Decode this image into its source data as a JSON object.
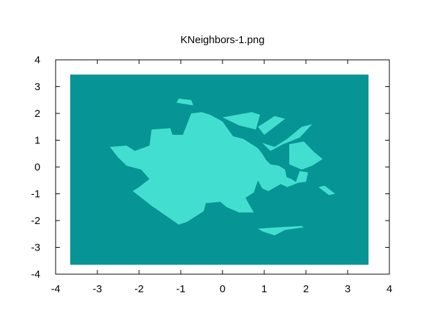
{
  "chart_data": {
    "type": "heatmap",
    "title": "KNeighbors-1.png",
    "xlabel": "",
    "ylabel": "",
    "xlim": [
      -4,
      4
    ],
    "ylim": [
      -4,
      4
    ],
    "x_ticks": [
      -4,
      -3,
      -2,
      -1,
      0,
      1,
      2,
      3,
      4
    ],
    "y_ticks": [
      -4,
      -3,
      -2,
      -1,
      0,
      1,
      2,
      3,
      4
    ],
    "grid": false,
    "legend": "none",
    "background_region": {
      "class": "class-0",
      "color": "#069494",
      "x_range": [
        -3.65,
        3.5
      ],
      "y_range": [
        -3.65,
        3.45
      ]
    },
    "regions": [
      {
        "class": "class-1",
        "color": "#42dfd0",
        "polygons": [
          [
            [
              -2.7,
              0.75
            ],
            [
              -2.3,
              0.8
            ],
            [
              -2.1,
              0.6
            ],
            [
              -1.75,
              0.8
            ],
            [
              -1.7,
              1.4
            ],
            [
              -1.25,
              1.45
            ],
            [
              -1.2,
              1.2
            ],
            [
              -0.95,
              1.2
            ],
            [
              -0.75,
              2.0
            ],
            [
              -0.5,
              2.05
            ],
            [
              -0.3,
              1.95
            ],
            [
              0.0,
              1.7
            ],
            [
              0.25,
              1.15
            ],
            [
              0.5,
              1.05
            ],
            [
              0.85,
              0.7
            ],
            [
              0.95,
              0.5
            ],
            [
              1.05,
              0.25
            ],
            [
              1.15,
              0.1
            ],
            [
              1.35,
              0.05
            ],
            [
              1.5,
              -0.1
            ],
            [
              1.55,
              -0.5
            ],
            [
              1.1,
              -0.9
            ],
            [
              0.95,
              -0.8
            ],
            [
              0.85,
              -0.5
            ],
            [
              0.75,
              -0.95
            ],
            [
              0.55,
              -1.15
            ],
            [
              0.75,
              -1.7
            ],
            [
              0.4,
              -1.7
            ],
            [
              0.1,
              -1.5
            ],
            [
              -0.05,
              -1.3
            ],
            [
              -0.4,
              -1.35
            ],
            [
              -0.45,
              -1.65
            ],
            [
              -0.85,
              -2.05
            ],
            [
              -1.05,
              -2.15
            ],
            [
              -1.7,
              -1.45
            ],
            [
              -2.15,
              -0.9
            ],
            [
              -2.0,
              -0.75
            ],
            [
              -1.75,
              -0.45
            ],
            [
              -1.95,
              -0.1
            ],
            [
              -2.3,
              0.05
            ],
            [
              -2.4,
              0.2
            ],
            [
              -2.5,
              0.35
            ]
          ],
          [
            [
              -1.05,
              2.55
            ],
            [
              -0.75,
              2.5
            ],
            [
              -0.7,
              2.3
            ],
            [
              -1.1,
              2.4
            ]
          ],
          [
            [
              0.0,
              1.85
            ],
            [
              0.7,
              2.05
            ],
            [
              0.9,
              1.95
            ],
            [
              0.8,
              1.4
            ],
            [
              0.4,
              1.55
            ]
          ],
          [
            [
              0.85,
              1.5
            ],
            [
              1.0,
              1.2
            ],
            [
              1.5,
              1.8
            ],
            [
              1.25,
              1.9
            ]
          ],
          [
            [
              0.95,
              0.9
            ],
            [
              1.25,
              0.75
            ],
            [
              1.55,
              1.05
            ],
            [
              1.9,
              1.5
            ],
            [
              2.15,
              1.6
            ],
            [
              1.85,
              1.1
            ],
            [
              1.45,
              0.85
            ],
            [
              1.15,
              0.6
            ]
          ],
          [
            [
              1.6,
              0.85
            ],
            [
              1.95,
              0.95
            ],
            [
              2.2,
              0.55
            ],
            [
              2.4,
              0.3
            ],
            [
              2.15,
              0.05
            ],
            [
              1.9,
              -0.1
            ],
            [
              1.6,
              0.1
            ]
          ],
          [
            [
              1.4,
              -0.3
            ],
            [
              1.65,
              -0.45
            ],
            [
              1.8,
              -0.6
            ],
            [
              1.55,
              -0.75
            ],
            [
              1.35,
              -0.6
            ]
          ],
          [
            [
              1.85,
              -0.15
            ],
            [
              2.05,
              -0.2
            ],
            [
              2.0,
              -0.55
            ],
            [
              1.75,
              -0.6
            ]
          ],
          [
            [
              2.3,
              -0.75
            ],
            [
              2.45,
              -0.7
            ],
            [
              2.7,
              -1.0
            ],
            [
              2.55,
              -1.05
            ]
          ],
          [
            [
              0.85,
              -2.3
            ],
            [
              1.35,
              -2.25
            ],
            [
              1.9,
              -2.2
            ],
            [
              1.95,
              -2.25
            ],
            [
              1.5,
              -2.35
            ],
            [
              1.25,
              -2.55
            ],
            [
              0.95,
              -2.4
            ]
          ]
        ]
      }
    ]
  }
}
